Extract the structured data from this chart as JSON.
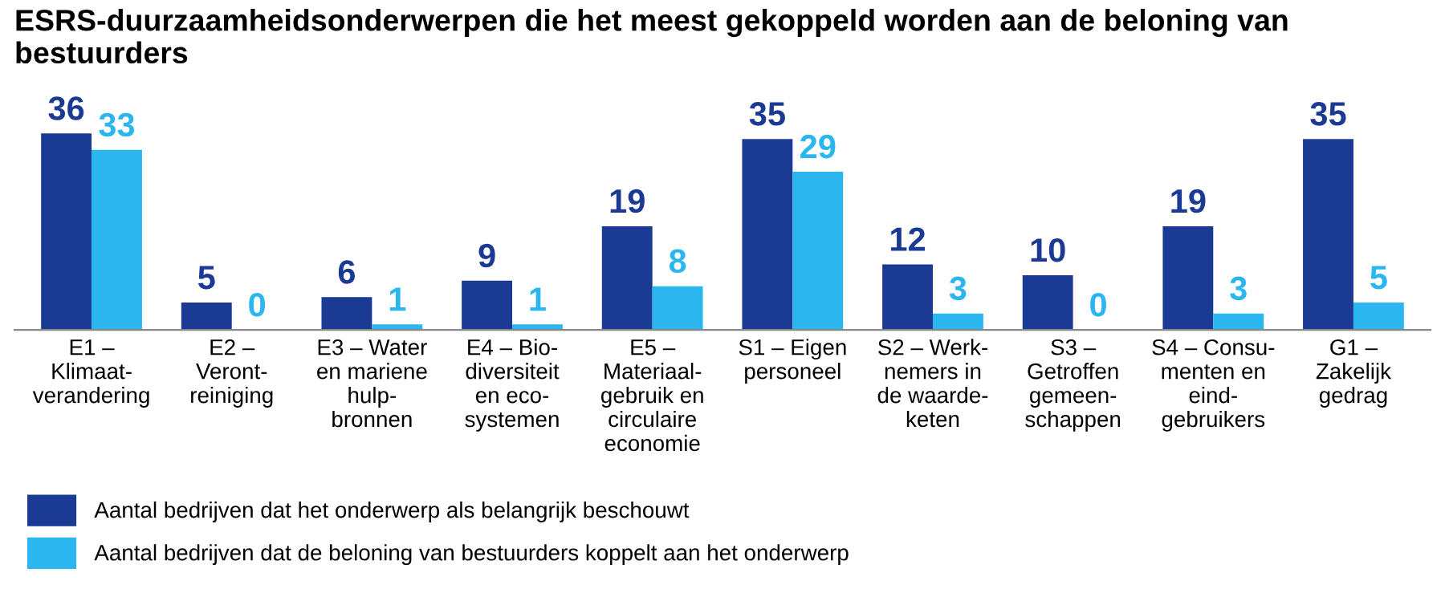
{
  "chart_data": {
    "type": "bar",
    "title": "ESRS-duurzaamheidsonderwerpen die het meest gekoppeld worden aan de beloning van bestuurders",
    "categories": [
      "E1 –\nKlimaat-\nverandering",
      "E2 –\nVeront-\nreiniging",
      "E3 – Water\nen mariene\nhulp-\nbronnen",
      "E4 – Bio-\ndiversiteit\nen eco-\nsystemen",
      "E5 –\nMateriaal-\ngebruik en\ncirculaire\neconomie",
      "S1 – Eigen\npersoneel",
      "S2 – Werk-\nnemers in\nde waarde-\nketen",
      "S3 –\nGetroffen\ngemeen-\nschappen",
      "S4 – Consu-\nmenten en\neind-\ngebruikers",
      "G1 –\nZakelijk\ngedrag"
    ],
    "series": [
      {
        "name": "Aantal bedrijven dat het onderwerp als belangrijk beschouwt",
        "color": "#1a3a94",
        "values": [
          36,
          5,
          6,
          9,
          19,
          35,
          12,
          10,
          19,
          35
        ]
      },
      {
        "name": "Aantal bedrijven dat de beloning van bestuurders koppelt aan het onderwerp",
        "color": "#2cb6f0",
        "values": [
          33,
          0,
          1,
          1,
          8,
          29,
          3,
          0,
          3,
          5
        ]
      }
    ],
    "data_labels": true,
    "legend": "bottom left",
    "grid": false
  }
}
